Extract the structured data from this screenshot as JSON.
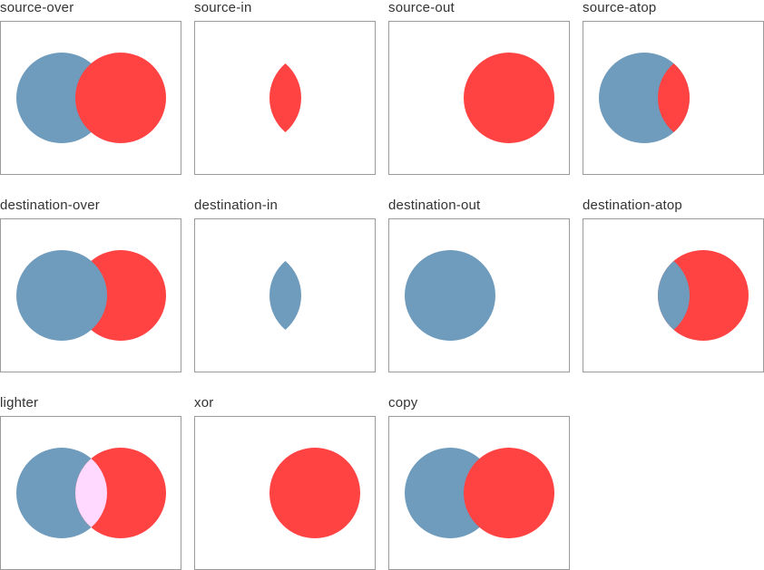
{
  "colors": {
    "destination": "#6f9cbc",
    "source": "#ff4343",
    "lighter_overlap": "#ffd9ff",
    "frame_border": "#9a9a9a"
  },
  "examples": [
    {
      "label": "source-over",
      "mode": "source-over"
    },
    {
      "label": "source-in",
      "mode": "source-in"
    },
    {
      "label": "source-out",
      "mode": "source-out"
    },
    {
      "label": "source-atop",
      "mode": "source-atop"
    },
    {
      "label": "destination-over",
      "mode": "destination-over"
    },
    {
      "label": "destination-in",
      "mode": "destination-in"
    },
    {
      "label": "destination-out",
      "mode": "destination-out"
    },
    {
      "label": "destination-atop",
      "mode": "destination-atop"
    },
    {
      "label": "lighter",
      "mode": "lighter"
    },
    {
      "label": "xor",
      "mode": "xor"
    },
    {
      "label": "copy",
      "mode": "copy"
    }
  ]
}
